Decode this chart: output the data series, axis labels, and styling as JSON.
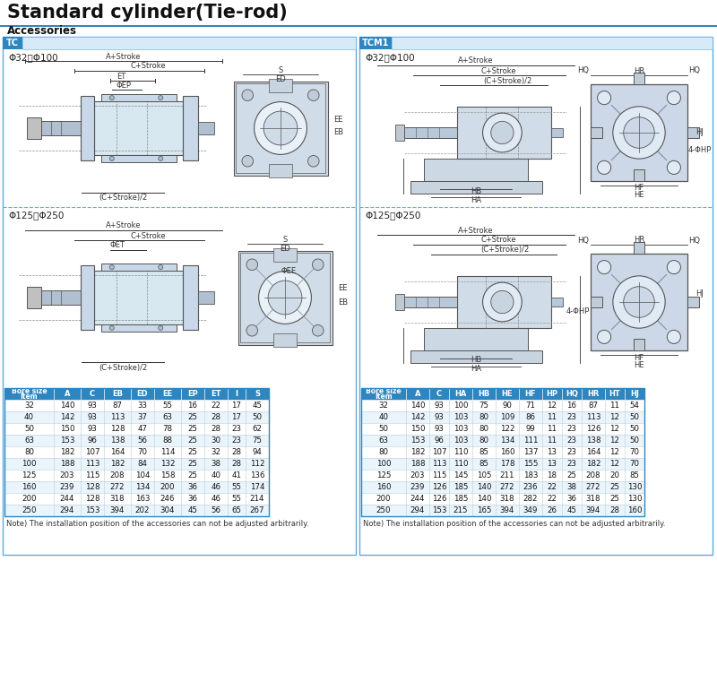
{
  "title": "Standard cylinder(Tie-rod)",
  "subtitle": "Accessories",
  "tc_label": "TC",
  "tcm1_label": "TCM1",
  "bore_range_small": "Φ32～Φ100",
  "bore_range_large": "Φ125～Φ250",
  "tc_headers": [
    "Bore size\\Item",
    "A",
    "C",
    "EB",
    "ED",
    "EE",
    "EP",
    "ET",
    "I",
    "S"
  ],
  "tc_data": [
    [
      32,
      140,
      93,
      87,
      33,
      55,
      16,
      22,
      17,
      45
    ],
    [
      40,
      142,
      93,
      113,
      37,
      63,
      25,
      28,
      17,
      50
    ],
    [
      50,
      150,
      93,
      128,
      47,
      78,
      25,
      28,
      23,
      62
    ],
    [
      63,
      153,
      96,
      138,
      56,
      88,
      25,
      30,
      23,
      75
    ],
    [
      80,
      182,
      107,
      164,
      70,
      114,
      25,
      32,
      28,
      94
    ],
    [
      100,
      188,
      113,
      182,
      84,
      132,
      25,
      38,
      28,
      112
    ],
    [
      125,
      203,
      115,
      208,
      104,
      158,
      25,
      40,
      41,
      136
    ],
    [
      160,
      239,
      128,
      272,
      134,
      200,
      36,
      46,
      55,
      174
    ],
    [
      200,
      244,
      128,
      318,
      163,
      246,
      36,
      46,
      55,
      214
    ],
    [
      250,
      294,
      153,
      394,
      202,
      304,
      45,
      56,
      65,
      267
    ]
  ],
  "tcm1_headers": [
    "Bore size\\Item",
    "A",
    "C",
    "HA",
    "HB",
    "HE",
    "HF",
    "HP",
    "HQ",
    "HR",
    "HT",
    "HJ"
  ],
  "tcm1_data": [
    [
      32,
      140,
      93,
      100,
      75,
      90,
      71,
      12,
      16,
      87,
      11,
      54
    ],
    [
      40,
      142,
      93,
      103,
      80,
      109,
      86,
      11,
      23,
      113,
      12,
      50
    ],
    [
      50,
      150,
      93,
      103,
      80,
      122,
      99,
      11,
      23,
      126,
      12,
      50
    ],
    [
      63,
      153,
      96,
      103,
      80,
      134,
      111,
      11,
      23,
      138,
      12,
      50
    ],
    [
      80,
      182,
      107,
      110,
      85,
      160,
      137,
      13,
      23,
      164,
      12,
      70
    ],
    [
      100,
      188,
      113,
      110,
      85,
      178,
      155,
      13,
      23,
      182,
      12,
      70
    ],
    [
      125,
      203,
      115,
      145,
      105,
      211,
      183,
      18,
      25,
      208,
      20,
      85
    ],
    [
      160,
      239,
      126,
      185,
      140,
      272,
      236,
      22,
      38,
      272,
      25,
      130
    ],
    [
      200,
      244,
      126,
      185,
      140,
      318,
      282,
      22,
      36,
      318,
      25,
      130
    ],
    [
      250,
      294,
      153,
      215,
      165,
      394,
      349,
      26,
      45,
      394,
      28,
      160
    ]
  ],
  "note": "Note) The installation position of the accessories can not be adjusted arbitrarily.",
  "header_blue": "#2e86c1",
  "light_blue_bg": "#d6eaf8",
  "table_border": "#2e86c1",
  "panel_border": "#5dade2",
  "bg_color": "#ffffff",
  "row_alt_color": "#eaf4fb",
  "diag_bg": "#e8f4fb",
  "diag_line": "#555555",
  "diag_fill": "#d0d8e0",
  "diag_fill2": "#b8c8d8"
}
